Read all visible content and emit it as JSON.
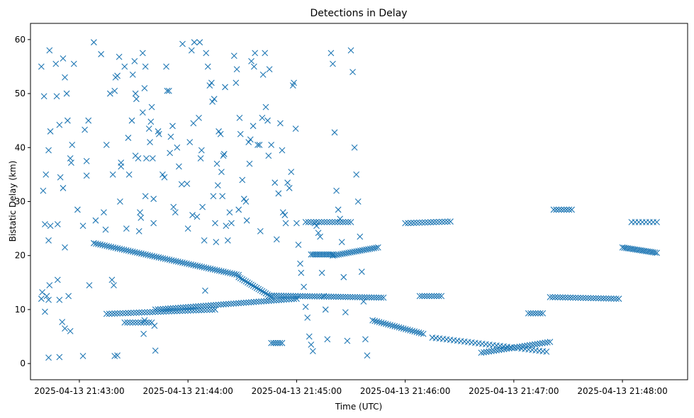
{
  "chart_data": {
    "type": "scatter",
    "title": "Detections in Delay",
    "xlabel": "Time (UTC)",
    "ylabel": "Bistatic Delay (km)",
    "marker": "x",
    "color": "#1f77b4",
    "x_unit": "seconds since 2025-04-13 21:43:00",
    "xlim": [
      -27,
      336
    ],
    "ylim": [
      -3,
      63
    ],
    "xticks": [
      0,
      60,
      120,
      180,
      240,
      300
    ],
    "xtick_labels": [
      "2025-04-13 21:43:00",
      "2025-04-13 21:44:00",
      "2025-04-13 21:45:00",
      "2025-04-13 21:46:00",
      "2025-04-13 21:47:00",
      "2025-04-13 21:48:00"
    ],
    "yticks": [
      0,
      10,
      20,
      30,
      40,
      50,
      60
    ],
    "ytick_labels": [
      "0",
      "10",
      "20",
      "30",
      "40",
      "50",
      "60"
    ],
    "tracks": [
      {
        "name": "descending track 22-16 km",
        "x_start": 8,
        "x_end": 88,
        "y_start": 22.3,
        "y_end": 16.4,
        "step": 1.2
      },
      {
        "name": "descending track 16-12 km",
        "x_start": 88,
        "x_end": 106,
        "y_start": 16.0,
        "y_end": 12.4,
        "step": 1.0
      },
      {
        "name": "track near 12.5 km",
        "x_start": 105,
        "x_end": 168,
        "y_start": 12.6,
        "y_end": 12.2,
        "step": 1.3
      },
      {
        "name": "track near 11 km",
        "x_start": 42,
        "x_end": 120,
        "y_start": 10.0,
        "y_end": 12.0,
        "step": 1.4
      },
      {
        "name": "track near 9.5 km",
        "x_start": 15,
        "x_end": 75,
        "y_start": 9.2,
        "y_end": 10.0,
        "step": 1.5
      },
      {
        "name": "track near 7.5 km",
        "x_start": 25,
        "x_end": 40,
        "y_start": 7.6,
        "y_end": 7.6,
        "step": 1.5
      },
      {
        "name": "track near 20.5 km",
        "x_start": 128,
        "x_end": 140,
        "y_start": 20.2,
        "y_end": 20.2,
        "step": 1.0
      },
      {
        "name": "ascending track 20-21.5 km",
        "x_start": 140,
        "x_end": 165,
        "y_start": 20.0,
        "y_end": 21.5,
        "step": 1.1
      },
      {
        "name": "track near 26 km",
        "x_start": 125,
        "x_end": 150,
        "y_start": 26.2,
        "y_end": 26.2,
        "step": 1.5
      },
      {
        "name": "descending track 8-5.5 km",
        "x_start": 162,
        "x_end": 190,
        "y_start": 8.0,
        "y_end": 5.5,
        "step": 1.2
      },
      {
        "name": "descending track 5-2.2 km",
        "x_start": 195,
        "x_end": 258,
        "y_start": 4.8,
        "y_end": 2.2,
        "step": 2.0
      },
      {
        "name": "ascending track 2-4 km",
        "x_start": 222,
        "x_end": 260,
        "y_start": 2.0,
        "y_end": 4.0,
        "step": 1.4
      },
      {
        "name": "track near 12.3 km",
        "x_start": 260,
        "x_end": 298,
        "y_start": 12.3,
        "y_end": 12.0,
        "step": 1.4
      },
      {
        "name": "track near 20.5 km right",
        "x_start": 300,
        "x_end": 319,
        "y_start": 21.5,
        "y_end": 20.5,
        "step": 1.0
      },
      {
        "name": "track near 26.2 km right",
        "x_start": 305,
        "x_end": 319,
        "y_start": 26.2,
        "y_end": 26.2,
        "step": 2.0
      },
      {
        "name": "track near 26.2 km middle",
        "x_start": 180,
        "x_end": 205,
        "y_start": 26.0,
        "y_end": 26.3,
        "step": 1.6
      },
      {
        "name": "track near 12.3 km middle",
        "x_start": 188,
        "x_end": 200,
        "y_start": 12.5,
        "y_end": 12.5,
        "step": 1.3
      },
      {
        "name": "track near 9.5 km middle",
        "x_start": 248,
        "x_end": 256,
        "y_start": 9.3,
        "y_end": 9.3,
        "step": 1.3
      },
      {
        "name": "track near 28.5 km",
        "x_start": 262,
        "x_end": 272,
        "y_start": 28.5,
        "y_end": 28.5,
        "step": 1.5
      },
      {
        "name": "track near 3.5 km",
        "x_start": 106,
        "x_end": 112,
        "y_start": 3.8,
        "y_end": 3.8,
        "step": 1.3
      }
    ],
    "scattered_points": [
      [
        -21.0,
        55.0
      ],
      [
        -19.5,
        49.5
      ],
      [
        -20.0,
        32.0
      ],
      [
        -18.5,
        35.0
      ],
      [
        -19.0,
        25.8
      ],
      [
        -20.5,
        13.2
      ],
      [
        -21.0,
        12.0
      ],
      [
        -18.0,
        12.5
      ],
      [
        -19.0,
        9.6
      ],
      [
        -17.0,
        11.8
      ],
      [
        -16.5,
        58.0
      ],
      [
        -16.0,
        43.0
      ],
      [
        -17.0,
        39.5
      ],
      [
        -16.0,
        25.5
      ],
      [
        -17.0,
        22.8
      ],
      [
        -16.5,
        14.5
      ],
      [
        -17.0,
        1.1
      ],
      [
        -13.0,
        55.5
      ],
      [
        -12.5,
        49.5
      ],
      [
        -12.0,
        25.8
      ],
      [
        -11.0,
        44.2
      ],
      [
        -10.5,
        34.5
      ],
      [
        -12.0,
        15.5
      ],
      [
        -11.0,
        11.8
      ],
      [
        -11.0,
        1.2
      ],
      [
        -9.0,
        56.5
      ],
      [
        -8.0,
        53.0
      ],
      [
        -7.0,
        50.0
      ],
      [
        -6.5,
        45.0
      ],
      [
        -9.0,
        32.5
      ],
      [
        -5.0,
        38.0
      ],
      [
        -4.5,
        37.2
      ],
      [
        -8.0,
        21.5
      ],
      [
        -6.0,
        12.5
      ],
      [
        -8.0,
        6.5
      ],
      [
        -5.0,
        6.0
      ],
      [
        -9.5,
        7.7
      ],
      [
        -4.0,
        40.5
      ],
      [
        -3.0,
        55.5
      ],
      [
        -1.0,
        28.5
      ],
      [
        2.0,
        25.5
      ],
      [
        3.0,
        43.3
      ],
      [
        4.0,
        34.8
      ],
      [
        5.0,
        45.0
      ],
      [
        4.0,
        37.5
      ],
      [
        5.5,
        14.5
      ],
      [
        2.0,
        1.4
      ],
      [
        8.0,
        59.5
      ],
      [
        9.0,
        26.5
      ],
      [
        12.0,
        57.3
      ],
      [
        13.5,
        28.0
      ],
      [
        15.0,
        40.5
      ],
      [
        14.5,
        24.8
      ],
      [
        17.0,
        50.0
      ],
      [
        18.5,
        35.0
      ],
      [
        20.0,
        53.0
      ],
      [
        19.5,
        50.5
      ],
      [
        21.0,
        53.3
      ],
      [
        22.0,
        56.8
      ],
      [
        18.0,
        15.5
      ],
      [
        19.0,
        14.5
      ],
      [
        19.5,
        1.4
      ],
      [
        21.0,
        1.5
      ],
      [
        22.5,
        30.0
      ],
      [
        23.0,
        36.5
      ],
      [
        23.0,
        37.2
      ],
      [
        25.0,
        55.0
      ],
      [
        26.0,
        25.0
      ],
      [
        27.0,
        41.8
      ],
      [
        27.5,
        35.0
      ],
      [
        29.5,
        53.5
      ],
      [
        29.0,
        45.0
      ],
      [
        30.5,
        56.0
      ],
      [
        31.0,
        50.0
      ],
      [
        31.5,
        49.0
      ],
      [
        31.0,
        38.5
      ],
      [
        32.5,
        38.0
      ],
      [
        33.0,
        24.5
      ],
      [
        33.5,
        28.0
      ],
      [
        34.0,
        27.0
      ],
      [
        35.0,
        46.5
      ],
      [
        35.0,
        57.5
      ],
      [
        36.0,
        51.0
      ],
      [
        36.5,
        55.0
      ],
      [
        37.0,
        38.0
      ],
      [
        36.5,
        31.0
      ],
      [
        36.0,
        8.0
      ],
      [
        35.5,
        5.5
      ],
      [
        38.5,
        43.5
      ],
      [
        39.0,
        41.0
      ],
      [
        39.5,
        44.8
      ],
      [
        40.0,
        47.5
      ],
      [
        40.5,
        38.0
      ],
      [
        41.0,
        30.5
      ],
      [
        41.0,
        26.0
      ],
      [
        41.5,
        7.0
      ],
      [
        42.0,
        2.4
      ],
      [
        43.5,
        43.0
      ],
      [
        44.0,
        42.5
      ],
      [
        46.0,
        35.0
      ],
      [
        47.0,
        34.5
      ],
      [
        48.0,
        55.0
      ],
      [
        48.5,
        50.5
      ],
      [
        49.5,
        50.5
      ],
      [
        50.5,
        42.0
      ],
      [
        50.0,
        39.0
      ],
      [
        51.5,
        44.0
      ],
      [
        52.0,
        29.0
      ],
      [
        53.0,
        28.0
      ],
      [
        54.0,
        40.0
      ],
      [
        55.0,
        36.5
      ],
      [
        56.5,
        33.2
      ],
      [
        57.0,
        59.2
      ],
      [
        59.5,
        33.3
      ],
      [
        60.0,
        25.0
      ],
      [
        61.0,
        41.0
      ],
      [
        62.0,
        58.0
      ],
      [
        63.5,
        59.5
      ],
      [
        63.0,
        44.5
      ],
      [
        62.5,
        27.5
      ],
      [
        65.0,
        27.2
      ],
      [
        66.0,
        45.5
      ],
      [
        66.5,
        59.5
      ],
      [
        67.0,
        38.0
      ],
      [
        67.5,
        39.5
      ],
      [
        68.0,
        29.0
      ],
      [
        69.0,
        22.8
      ],
      [
        69.5,
        13.5
      ],
      [
        70.0,
        57.5
      ],
      [
        71.0,
        55.0
      ],
      [
        72.0,
        51.5
      ],
      [
        73.0,
        52.0
      ],
      [
        73.5,
        48.5
      ],
      [
        74.5,
        49.0
      ],
      [
        74.0,
        31.0
      ],
      [
        75.0,
        26.0
      ],
      [
        75.5,
        22.5
      ],
      [
        76.0,
        37.0
      ],
      [
        76.5,
        33.0
      ],
      [
        77.0,
        43.0
      ],
      [
        78.0,
        42.5
      ],
      [
        78.5,
        35.5
      ],
      [
        79.0,
        31.0
      ],
      [
        79.5,
        38.5
      ],
      [
        80.0,
        38.8
      ],
      [
        80.5,
        51.2
      ],
      [
        81.0,
        25.5
      ],
      [
        82.0,
        22.8
      ],
      [
        83.0,
        28.0
      ],
      [
        84.0,
        26.0
      ],
      [
        85.5,
        57.0
      ],
      [
        86.5,
        52.0
      ],
      [
        87.0,
        54.5
      ],
      [
        88.0,
        28.5
      ],
      [
        88.5,
        45.5
      ],
      [
        89.0,
        42.5
      ],
      [
        90.0,
        34.0
      ],
      [
        91.0,
        30.5
      ],
      [
        92.0,
        30.0
      ],
      [
        92.5,
        26.5
      ],
      [
        93.5,
        41.0
      ],
      [
        94.0,
        37.0
      ],
      [
        94.5,
        41.5
      ],
      [
        95.0,
        56.0
      ],
      [
        96.0,
        44.0
      ],
      [
        96.5,
        55.0
      ],
      [
        97.0,
        57.5
      ],
      [
        98.5,
        40.5
      ],
      [
        99.5,
        40.5
      ],
      [
        100.0,
        24.5
      ],
      [
        101.0,
        45.5
      ],
      [
        101.5,
        53.5
      ],
      [
        102.5,
        57.5
      ],
      [
        103.0,
        47.5
      ],
      [
        104.0,
        45.0
      ],
      [
        104.5,
        38.5
      ],
      [
        105.0,
        54.5
      ],
      [
        106.0,
        40.5
      ],
      [
        108.0,
        33.5
      ],
      [
        109.0,
        23.0
      ],
      [
        110.0,
        31.5
      ],
      [
        111.0,
        44.5
      ],
      [
        112.0,
        39.5
      ],
      [
        112.5,
        28.0
      ],
      [
        113.5,
        27.5
      ],
      [
        114.0,
        26.0
      ],
      [
        115.0,
        33.5
      ],
      [
        116.0,
        32.5
      ],
      [
        117.0,
        35.5
      ],
      [
        118.0,
        51.5
      ],
      [
        118.5,
        52.0
      ],
      [
        119.5,
        43.5
      ],
      [
        120.0,
        26.0
      ],
      [
        121.0,
        22.0
      ],
      [
        122.0,
        18.5
      ],
      [
        122.5,
        16.8
      ],
      [
        124.0,
        14.2
      ],
      [
        125.0,
        10.5
      ],
      [
        126.0,
        8.5
      ],
      [
        127.0,
        5.0
      ],
      [
        128.0,
        3.5
      ],
      [
        129.0,
        2.3
      ],
      [
        130.0,
        26.0
      ],
      [
        131.0,
        25.5
      ],
      [
        132.0,
        24.2
      ],
      [
        133.0,
        23.5
      ],
      [
        134.0,
        16.8
      ],
      [
        135.0,
        12.5
      ],
      [
        136.0,
        10.0
      ],
      [
        137.0,
        4.5
      ],
      [
        139.0,
        57.5
      ],
      [
        140.0,
        55.5
      ],
      [
        141.0,
        42.8
      ],
      [
        142.0,
        32.0
      ],
      [
        143.0,
        28.5
      ],
      [
        144.0,
        26.8
      ],
      [
        145.0,
        22.5
      ],
      [
        146.0,
        16.0
      ],
      [
        147.0,
        9.5
      ],
      [
        148.0,
        4.2
      ],
      [
        150.0,
        58.0
      ],
      [
        151.0,
        54.0
      ],
      [
        152.0,
        40.0
      ],
      [
        153.0,
        35.0
      ],
      [
        154.0,
        30.0
      ],
      [
        155.0,
        23.5
      ],
      [
        156.0,
        17.0
      ],
      [
        157.0,
        11.5
      ],
      [
        158.0,
        4.5
      ],
      [
        159.0,
        1.5
      ]
    ]
  }
}
